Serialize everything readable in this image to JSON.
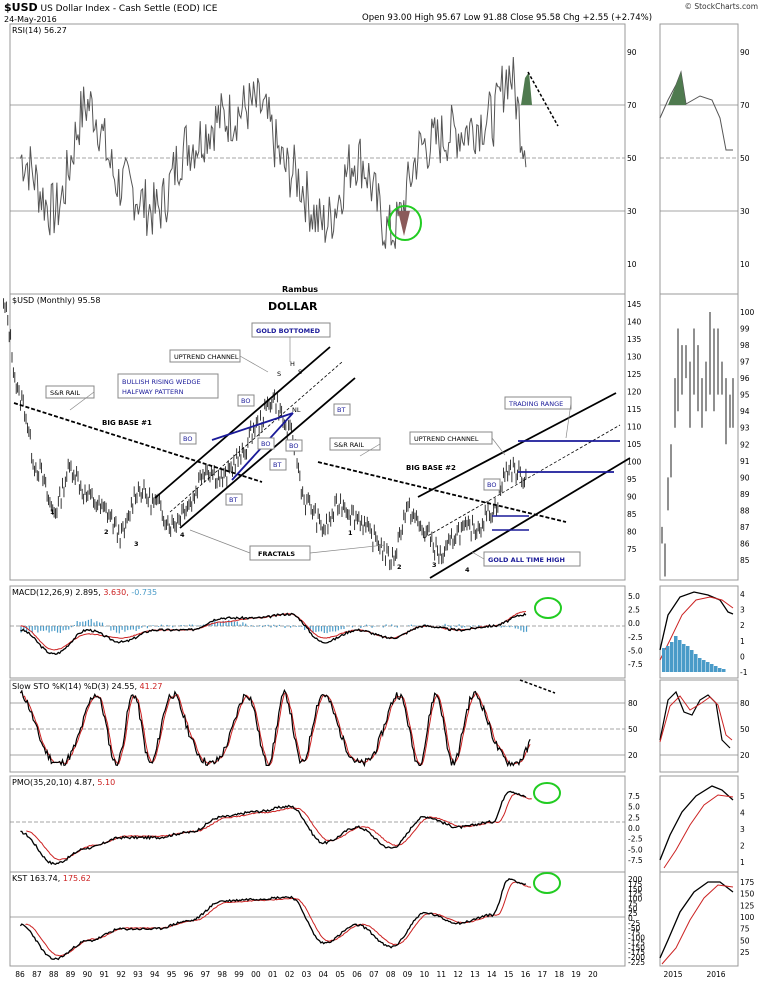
{
  "header": {
    "title": "$USD US Dollar Index - Cash Settle (EOD) ICE",
    "title_ticker": "$USD",
    "title_rest": " US Dollar Index - Cash Settle (EOD) ICE",
    "date": "24-May-2016",
    "ohlc": "Open 93.00  High 95.67  Low 91.88  Close 95.58  Chg +2.55 (+2.74%)",
    "credit": "© StockCharts.com",
    "author": "Rambus"
  },
  "colors": {
    "price": "#222222",
    "signal": "#cc2222",
    "histogram": "#4a9bc8",
    "rsi_fill_high": "#4f7a4f",
    "rsi_fill_low": "#8a5a5a",
    "annotation_blue": "#1a1a99",
    "callout_circle": "#22cc22",
    "grid": "#cccccc"
  },
  "panels": {
    "rsi": {
      "label": "RSI(14) 56.27",
      "ticks": [
        "90",
        "70",
        "50",
        "30",
        "10"
      ]
    },
    "price": {
      "label": "$USD (Monthly) 95.58",
      "ticks": [
        "145",
        "140",
        "135",
        "130",
        "125",
        "120",
        "115",
        "110",
        "105",
        "100",
        "95",
        "90",
        "85",
        "80",
        "75"
      ],
      "inset_ticks": [
        "100",
        "99",
        "98",
        "97",
        "96",
        "95",
        "94",
        "93",
        "92",
        "91",
        "90",
        "89",
        "88",
        "87",
        "86",
        "85"
      ]
    },
    "macd": {
      "label_name": "MACD(12,26,9)",
      "label_v1": "2.895,",
      "label_v2": "3.630,",
      "label_v3": "-0.735",
      "ticks": [
        "5.0",
        "2.5",
        "0.0",
        "-2.5",
        "-5.0",
        "-7.5"
      ],
      "inset_ticks": [
        "4",
        "3",
        "2",
        "1",
        "0",
        "-1"
      ]
    },
    "sto": {
      "label_name": "Slow STO %K(14) %D(3)",
      "label_v1": "24.55,",
      "label_v2": "41.27",
      "ticks": [
        "80",
        "50",
        "20"
      ],
      "inset_ticks": [
        "80",
        "50",
        "20"
      ]
    },
    "pmo": {
      "label_name": "PMO(35,20,10)",
      "label_v1": "4.87,",
      "label_v2": "5.10",
      "ticks": [
        "7.5",
        "5.0",
        "2.5",
        "0.0",
        "-2.5",
        "-5.0",
        "-7.5"
      ],
      "inset_ticks": [
        "5",
        "4",
        "3",
        "2",
        "1"
      ]
    },
    "kst": {
      "label_name": "KST",
      "label_v1": "163.74,",
      "label_v2": "175.62",
      "ticks": [
        "200",
        "175",
        "150",
        "125",
        "100",
        "75",
        "50",
        "25",
        "0",
        "-25",
        "-50",
        "-75",
        "-100",
        "-125",
        "-150",
        "-175",
        "-200",
        "-225"
      ],
      "inset_ticks": [
        "175",
        "150",
        "125",
        "100",
        "75",
        "50",
        "25"
      ]
    }
  },
  "x_axis": {
    "labels": [
      "86",
      "87",
      "88",
      "89",
      "90",
      "91",
      "92",
      "93",
      "94",
      "95",
      "96",
      "97",
      "98",
      "99",
      "00",
      "01",
      "02",
      "03",
      "04",
      "05",
      "06",
      "07",
      "08",
      "09",
      "10",
      "11",
      "12",
      "13",
      "14",
      "15",
      "16",
      "17",
      "18",
      "19",
      "20"
    ],
    "inset_labels": [
      "2015",
      "2016"
    ]
  },
  "annotations": {
    "chart_title": "DOLLAR",
    "gold_bottomed": "GOLD BOTTOMED",
    "uptrend_channel_1": "UPTREND CHANNEL",
    "bullish_wedge_1": "BULLISH RISING WEDGE",
    "bullish_wedge_2": "HALFWAY PATTERN",
    "sr_rail_1": "S&R RAIL",
    "big_base_1": "BIG BASE #1",
    "big_base_2": "BIG BASE #2",
    "sr_rail_2": "S&R RAIL",
    "uptrend_channel_2": "UPTREND CHANNEL",
    "trading_range": "TRADING RANGE",
    "fractals": "FRACTALS",
    "gold_ath": "GOLD ALL TIME HIGH",
    "bo": "BO",
    "bt": "BT",
    "s": "S",
    "h": "H",
    "nl": "NL",
    "n1": "1",
    "n2": "2",
    "n3": "3",
    "n4": "4"
  },
  "chart_data": [
    {
      "type": "line",
      "title": "RSI(14)",
      "series": [
        {
          "name": "RSI(14)",
          "x": [
            "1986",
            "1988",
            "1990",
            "1992",
            "1994",
            "1996",
            "1998",
            "2000",
            "2002",
            "2004",
            "2006",
            "2008",
            "2010",
            "2012",
            "2014",
            "2015",
            "2016"
          ],
          "values": [
            50,
            30,
            70,
            40,
            30,
            55,
            65,
            70,
            45,
            25,
            50,
            22,
            55,
            60,
            65,
            82,
            56.27
          ]
        }
      ],
      "ylim": [
        0,
        100
      ],
      "grid": true
    },
    {
      "type": "line",
      "title": "$USD (Monthly)",
      "series": [
        {
          "name": "$USD (Monthly)",
          "x": [
            "1985",
            "1986",
            "1987",
            "1988",
            "1989",
            "1990",
            "1991",
            "1992",
            "1993",
            "1994",
            "1995",
            "1996",
            "1997",
            "1998",
            "1999",
            "2000",
            "2001",
            "2002",
            "2003",
            "2004",
            "2005",
            "2006",
            "2007",
            "2008",
            "2009",
            "2010",
            "2011",
            "2012",
            "2013",
            "2014",
            "2015",
            "2016"
          ],
          "values": [
            144,
            118,
            98,
            86,
            98,
            90,
            86,
            79,
            92,
            88,
            82,
            88,
            98,
            95,
            101,
            110,
            118,
            108,
            88,
            81,
            88,
            84,
            78,
            72,
            86,
            80,
            73,
            80,
            81,
            86,
            98,
            95.58
          ]
        }
      ],
      "ylim": [
        70,
        147
      ],
      "grid": true
    },
    {
      "type": "line",
      "title": "MACD(12,26,9)",
      "series": [
        {
          "name": "MACD",
          "x": [
            "1986",
            "1988",
            "1990",
            "1992",
            "1994",
            "1996",
            "1998",
            "2000",
            "2002",
            "2004",
            "2006",
            "2008",
            "2010",
            "2012",
            "2014",
            "2016"
          ],
          "values": [
            -1,
            -7,
            -1,
            -4,
            -1,
            -1,
            2,
            2,
            3,
            -4,
            -1,
            -3,
            0,
            -1,
            0,
            2.895
          ]
        },
        {
          "name": "Signal",
          "x": [
            "1986",
            "1988",
            "1990",
            "1992",
            "1994",
            "1996",
            "1998",
            "2000",
            "2002",
            "2004",
            "2006",
            "2008",
            "2010",
            "2012",
            "2014",
            "2016"
          ],
          "values": [
            0,
            -6,
            -2,
            -3,
            -1,
            -1,
            1,
            2,
            3,
            -3,
            -1,
            -3,
            0,
            -1,
            0,
            3.63
          ]
        }
      ],
      "ylim": [
        -8.5,
        6
      ]
    },
    {
      "type": "line",
      "title": "Slow STO %K(14) %D(3)",
      "series": [
        {
          "name": "%K",
          "x": [
            "1986",
            "1990",
            "1995",
            "2000",
            "2005",
            "2010",
            "2015",
            "2016"
          ],
          "values": [
            85,
            20,
            75,
            85,
            20,
            85,
            95,
            24.55
          ]
        }
      ],
      "ylim": [
        0,
        100
      ]
    },
    {
      "type": "line",
      "title": "PMO(35,20,10)",
      "series": [
        {
          "name": "PMO",
          "x": [
            "1986",
            "1988",
            "1990",
            "1992",
            "1994",
            "1996",
            "1998",
            "2000",
            "2002",
            "2004",
            "2006",
            "2008",
            "2010",
            "2012",
            "2014",
            "2015",
            "2016"
          ],
          "values": [
            -2,
            -8,
            -5,
            -3,
            -3,
            -2,
            1,
            2,
            3,
            -4,
            -1,
            -5,
            1,
            -1,
            0,
            6,
            4.87
          ]
        }
      ],
      "ylim": [
        -9,
        8
      ]
    },
    {
      "type": "line",
      "title": "KST",
      "series": [
        {
          "name": "KST",
          "x": [
            "1986",
            "1988",
            "1990",
            "1992",
            "1994",
            "1996",
            "1998",
            "2000",
            "2002",
            "2004",
            "2006",
            "2008",
            "2010",
            "2012",
            "2014",
            "2015",
            "2016"
          ],
          "values": [
            -40,
            -210,
            -120,
            -60,
            -60,
            -20,
            80,
            90,
            100,
            -130,
            -40,
            -150,
            20,
            -30,
            10,
            190,
            163.74
          ]
        }
      ],
      "ylim": [
        -235,
        215
      ]
    }
  ]
}
